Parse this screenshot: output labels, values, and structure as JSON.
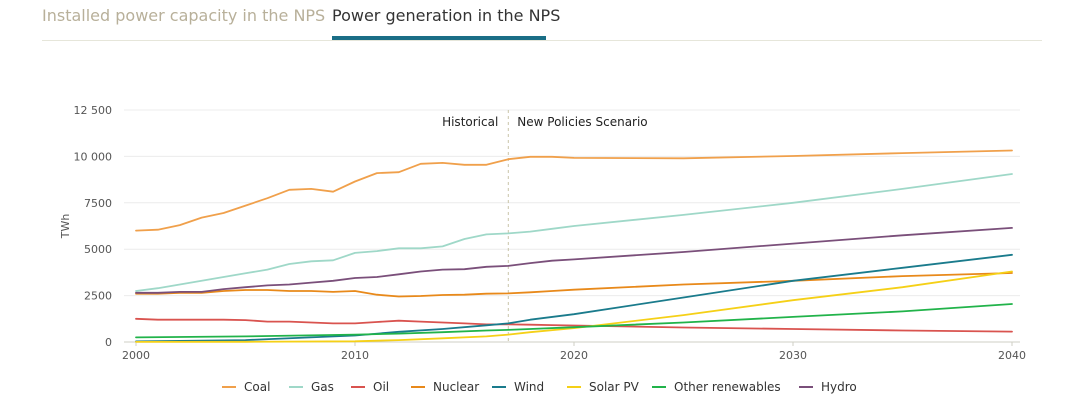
{
  "tabs": [
    {
      "label": "Installed power capacity in the NPS",
      "active": false
    },
    {
      "label": "Power generation in the NPS",
      "active": true
    }
  ],
  "chart_data": {
    "type": "line",
    "ylabel": "TWh",
    "ylim": [
      0,
      12500
    ],
    "yticks": [
      "0",
      "2500",
      "5000",
      "7500",
      "10 000",
      "12 500"
    ],
    "xlim": [
      2000,
      2040
    ],
    "xticks": [
      "2000",
      "2010",
      "2020",
      "2030",
      "2040"
    ],
    "divider_year": 2017,
    "annotations": {
      "left": "Historical",
      "right": "New Policies Scenario"
    },
    "grid": true,
    "legend_position": "bottom",
    "series": [
      {
        "name": "Coal",
        "color": "#f0a04b",
        "x": [
          2000,
          2001,
          2002,
          2003,
          2004,
          2005,
          2006,
          2007,
          2008,
          2009,
          2010,
          2011,
          2012,
          2013,
          2014,
          2015,
          2016,
          2017,
          2018,
          2019,
          2020,
          2025,
          2030,
          2035,
          2040
        ],
        "values": [
          6000,
          6050,
          6300,
          6700,
          6950,
          7350,
          7750,
          8200,
          8250,
          8100,
          8650,
          9100,
          9150,
          9600,
          9650,
          9550,
          9550,
          9850,
          9980,
          9980,
          9920,
          9900,
          10020,
          10180,
          10320
        ]
      },
      {
        "name": "Gas",
        "color": "#9fd8c8",
        "x": [
          2000,
          2001,
          2002,
          2003,
          2004,
          2005,
          2006,
          2007,
          2008,
          2009,
          2010,
          2011,
          2012,
          2013,
          2014,
          2015,
          2016,
          2017,
          2018,
          2019,
          2020,
          2025,
          2030,
          2035,
          2040
        ],
        "values": [
          2750,
          2900,
          3100,
          3300,
          3500,
          3700,
          3900,
          4200,
          4350,
          4400,
          4800,
          4900,
          5050,
          5050,
          5150,
          5550,
          5800,
          5850,
          5950,
          6100,
          6250,
          6850,
          7500,
          8250,
          9050
        ]
      },
      {
        "name": "Oil",
        "color": "#d9534f",
        "x": [
          2000,
          2001,
          2002,
          2003,
          2004,
          2005,
          2006,
          2007,
          2008,
          2009,
          2010,
          2011,
          2012,
          2013,
          2014,
          2015,
          2016,
          2017,
          2018,
          2019,
          2020,
          2025,
          2030,
          2035,
          2040
        ],
        "values": [
          1250,
          1200,
          1200,
          1200,
          1200,
          1180,
          1100,
          1100,
          1050,
          1000,
          1000,
          1080,
          1150,
          1100,
          1050,
          1000,
          950,
          950,
          930,
          910,
          890,
          780,
          700,
          620,
          560
        ]
      },
      {
        "name": "Nuclear",
        "color": "#e8891a",
        "x": [
          2000,
          2001,
          2002,
          2003,
          2004,
          2005,
          2006,
          2007,
          2008,
          2009,
          2010,
          2011,
          2012,
          2013,
          2014,
          2015,
          2016,
          2017,
          2018,
          2019,
          2020,
          2025,
          2030,
          2035,
          2040
        ],
        "values": [
          2600,
          2600,
          2650,
          2650,
          2750,
          2800,
          2800,
          2750,
          2750,
          2700,
          2750,
          2550,
          2450,
          2480,
          2530,
          2550,
          2600,
          2620,
          2680,
          2750,
          2820,
          3100,
          3300,
          3550,
          3720
        ]
      },
      {
        "name": "Wind",
        "color": "#1a7b8c",
        "x": [
          2000,
          2005,
          2010,
          2012,
          2014,
          2016,
          2017,
          2018,
          2020,
          2025,
          2030,
          2035,
          2040
        ],
        "values": [
          30,
          100,
          350,
          550,
          700,
          900,
          1000,
          1200,
          1500,
          2400,
          3300,
          4000,
          4700
        ]
      },
      {
        "name": "Solar PV",
        "color": "#f5d017",
        "x": [
          2000,
          2005,
          2010,
          2012,
          2014,
          2016,
          2017,
          2018,
          2020,
          2025,
          2030,
          2035,
          2040
        ],
        "values": [
          5,
          10,
          40,
          100,
          200,
          300,
          400,
          530,
          750,
          1450,
          2250,
          2950,
          3800
        ]
      },
      {
        "name": "Other renewables",
        "color": "#21b34a",
        "x": [
          2000,
          2005,
          2010,
          2012,
          2014,
          2016,
          2017,
          2018,
          2020,
          2025,
          2030,
          2035,
          2040
        ],
        "values": [
          250,
          300,
          400,
          450,
          530,
          620,
          650,
          700,
          800,
          1050,
          1350,
          1650,
          2050
        ]
      },
      {
        "name": "Hydro",
        "color": "#7a4f7a",
        "x": [
          2000,
          2001,
          2002,
          2003,
          2004,
          2005,
          2006,
          2007,
          2008,
          2009,
          2010,
          2011,
          2012,
          2013,
          2014,
          2015,
          2016,
          2017,
          2018,
          2019,
          2020,
          2025,
          2030,
          2035,
          2040
        ],
        "values": [
          2650,
          2650,
          2700,
          2700,
          2850,
          2950,
          3050,
          3100,
          3200,
          3300,
          3450,
          3500,
          3650,
          3800,
          3900,
          3920,
          4050,
          4100,
          4250,
          4380,
          4450,
          4850,
          5300,
          5750,
          6150
        ]
      }
    ]
  }
}
